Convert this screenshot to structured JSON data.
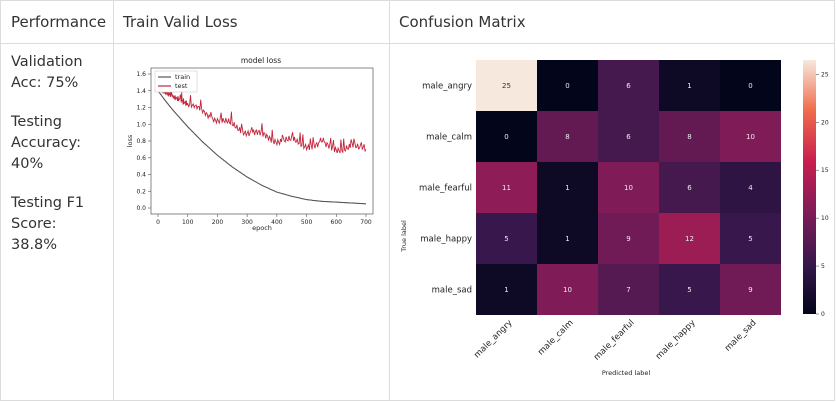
{
  "table": {
    "headers": [
      "Performance",
      "Train Valid Loss",
      "Confusion Matrix"
    ]
  },
  "performance": {
    "validation": "Validation Acc: 75%",
    "testing_accuracy": "Testing Accuracy: 40%",
    "testing_f1": "Testing F1 Score: 38.8%"
  },
  "chart_data": [
    {
      "type": "line",
      "title": "model loss",
      "xlabel": "epoch",
      "ylabel": "loss",
      "xlim": [
        0,
        700
      ],
      "ylim": [
        0,
        1.6
      ],
      "x_ticks": [
        "0",
        "100",
        "200",
        "300",
        "400",
        "500",
        "600",
        "700"
      ],
      "y_ticks": [
        "0.0",
        "0.2",
        "0.4",
        "0.6",
        "0.8",
        "1.0",
        "1.2",
        "1.4",
        "1.6"
      ],
      "legend_position": "top-left",
      "series": [
        {
          "name": "train",
          "color": "#555555",
          "x": [
            0,
            25,
            50,
            75,
            100,
            150,
            200,
            250,
            300,
            350,
            400,
            450,
            500,
            550,
            600,
            650,
            700
          ],
          "values": [
            1.4,
            1.28,
            1.17,
            1.07,
            0.97,
            0.79,
            0.63,
            0.49,
            0.37,
            0.27,
            0.19,
            0.14,
            0.1,
            0.08,
            0.07,
            0.06,
            0.05
          ]
        },
        {
          "name": "test",
          "color": "#c2263c",
          "x": [
            0,
            25,
            50,
            75,
            100,
            150,
            200,
            250,
            300,
            350,
            400,
            450,
            500,
            550,
            600,
            650,
            700
          ],
          "values": [
            1.42,
            1.38,
            1.33,
            1.29,
            1.24,
            1.15,
            1.06,
            0.98,
            0.92,
            0.86,
            0.82,
            0.79,
            0.76,
            0.74,
            0.72,
            0.71,
            0.7
          ]
        }
      ]
    },
    {
      "type": "heatmap",
      "xlabel": "Predicted label",
      "ylabel": "True label",
      "x_categories": [
        "male_angry",
        "male_calm",
        "male_fearful",
        "male_happy",
        "male_sad"
      ],
      "y_categories": [
        "male_angry",
        "male_calm",
        "male_fearful",
        "male_happy",
        "male_sad"
      ],
      "values": [
        [
          25,
          0,
          6,
          1,
          0
        ],
        [
          0,
          8,
          6,
          8,
          10
        ],
        [
          11,
          1,
          10,
          6,
          4
        ],
        [
          5,
          1,
          9,
          12,
          5
        ],
        [
          1,
          10,
          7,
          5,
          9
        ]
      ],
      "vmin": 0,
      "vmax": 25,
      "colorbar_ticks": [
        "0",
        "5",
        "10",
        "15",
        "20",
        "25"
      ]
    }
  ]
}
